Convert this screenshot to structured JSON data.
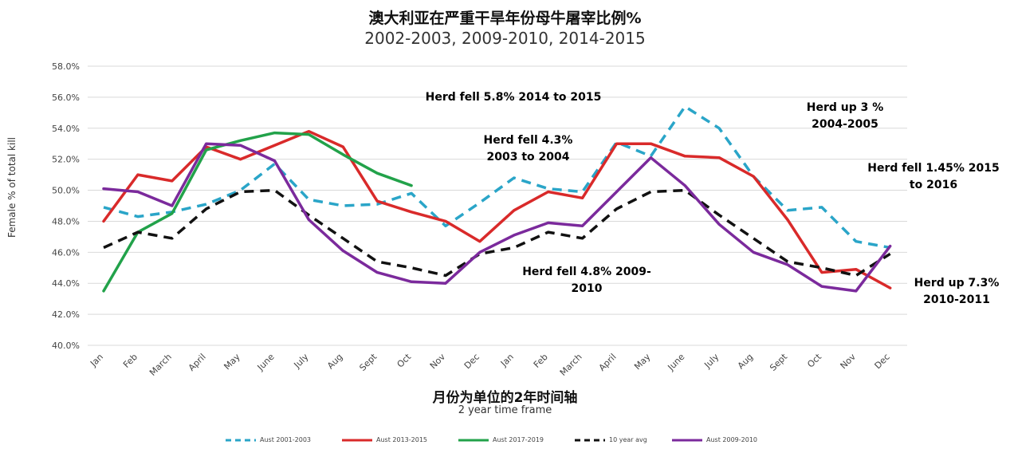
{
  "title": "澳大利亚在严重干旱年份母牛屠宰比例%",
  "subtitle": "2002-2003, 2009-2010, 2014-2015",
  "xlabel_cn": "月份为单位的2年时间轴",
  "xlabel_en": "2 year time frame",
  "ylabel": "Female % of total kill",
  "annotations": [
    {
      "text": "Herd fell 5.8% 2014 to 2015",
      "color": "#d92a2a"
    },
    {
      "text": "Herd fell 4.3%\n2003 to 2004",
      "color": "#2aa5c8"
    },
    {
      "text": "Herd up 3 %\n2004-2005",
      "color": "#2aa5c8"
    },
    {
      "text": "Herd fell 1.45% 2015\nto 2016",
      "color": "#d92a2a"
    },
    {
      "text": "Herd fell 4.8% 2009-\n2010",
      "color": "#7b2a9c"
    },
    {
      "text": "Herd up 7.3%\n2010-2011",
      "color": "#7b2a9c"
    }
  ],
  "chart_data": {
    "type": "line",
    "title": "澳大利亚在严重干旱年份母牛屠宰比例%",
    "subtitle": "2002-2003, 2009-2010, 2014-2015",
    "xlabel": "月份为单位的2年时间轴 / 2 year time frame",
    "ylabel": "Female % of total kill",
    "ylim": [
      40.0,
      58.0
    ],
    "yticks": [
      "40.0%",
      "42.0%",
      "44.0%",
      "46.0%",
      "48.0%",
      "50.0%",
      "52.0%",
      "54.0%",
      "56.0%",
      "58.0%"
    ],
    "grid": true,
    "legend_position": "bottom",
    "categories": [
      "Jan",
      "Feb",
      "March",
      "April",
      "May",
      "June",
      "July",
      "Aug",
      "Sept",
      "Oct",
      "Nov",
      "Dec",
      "Jan",
      "Feb",
      "March",
      "April",
      "May",
      "June",
      "July",
      "Aug",
      "Sept",
      "Oct",
      "Nov",
      "Dec"
    ],
    "series": [
      {
        "name": "Aust 2001-2003",
        "color": "#2aa5c8",
        "style": "dashed",
        "values": [
          48.9,
          48.3,
          48.6,
          49.1,
          50.0,
          51.7,
          49.4,
          49.0,
          49.1,
          49.8,
          47.7,
          49.2,
          50.8,
          50.1,
          49.9,
          53.1,
          52.2,
          55.4,
          54.0,
          50.9,
          48.7,
          48.9,
          46.7,
          46.3
        ]
      },
      {
        "name": "Aust 2013-2015",
        "color": "#d92a2a",
        "style": "solid",
        "values": [
          48.0,
          51.0,
          50.6,
          52.8,
          52.0,
          52.9,
          53.8,
          52.8,
          49.3,
          48.6,
          48.0,
          46.7,
          48.7,
          49.9,
          49.5,
          53.0,
          53.0,
          52.2,
          52.1,
          50.9,
          48.1,
          44.7,
          44.9,
          43.7
        ]
      },
      {
        "name": "Aust 2017-2019",
        "color": "#22a24a",
        "style": "solid",
        "values": [
          43.5,
          47.3,
          48.5,
          52.6,
          53.2,
          53.7,
          53.6,
          52.3,
          51.1,
          50.3,
          null,
          null,
          null,
          null,
          null,
          null,
          null,
          null,
          null,
          null,
          null,
          null,
          null,
          null
        ]
      },
      {
        "name": "10 year avg",
        "color": "#111111",
        "style": "dashed",
        "values": [
          46.3,
          47.3,
          46.9,
          48.8,
          49.9,
          50.0,
          48.4,
          46.9,
          45.4,
          45.0,
          44.5,
          45.9,
          46.3,
          47.3,
          46.9,
          48.8,
          49.9,
          50.0,
          48.4,
          46.9,
          45.4,
          45.0,
          44.5,
          45.9
        ]
      },
      {
        "name": "Aust 2009-2010",
        "color": "#7b2a9c",
        "style": "solid",
        "values": [
          50.1,
          49.9,
          49.0,
          53.0,
          52.9,
          51.9,
          48.1,
          46.1,
          44.7,
          44.1,
          44.0,
          46.0,
          47.1,
          47.9,
          47.7,
          49.9,
          52.1,
          50.3,
          47.8,
          46.0,
          45.2,
          43.8,
          43.5,
          46.4
        ]
      }
    ]
  }
}
